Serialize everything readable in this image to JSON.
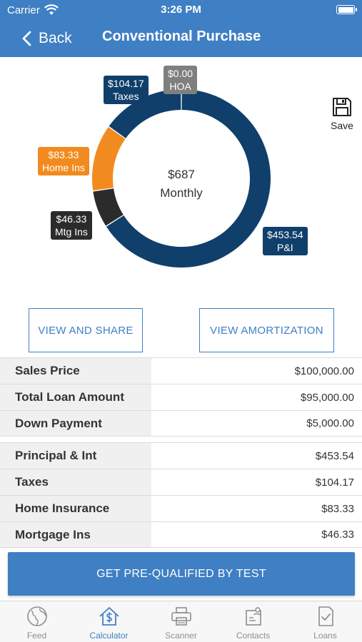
{
  "status": {
    "carrier": "Carrier",
    "time": "3:26 PM"
  },
  "nav": {
    "back_label": "Back",
    "title": "Conventional Purchase"
  },
  "chart_data": {
    "type": "pie",
    "style": "donut",
    "center_amount": "$687",
    "center_label": "Monthly",
    "slices": [
      {
        "name": "P&I",
        "value": 453.54,
        "label": "$453.54",
        "color": "#103f6b"
      },
      {
        "name": "Mtg Ins",
        "value": 46.33,
        "label": "$46.33",
        "color": "#2b2b2b"
      },
      {
        "name": "Home Ins",
        "value": 83.33,
        "label": "$83.33",
        "color": "#f28b1f"
      },
      {
        "name": "Taxes",
        "value": 104.17,
        "label": "$104.17",
        "color": "#103f6b"
      },
      {
        "name": "HOA",
        "value": 0.0,
        "label": "$0.00",
        "color": "#7f7f7f"
      }
    ]
  },
  "save_label": "Save",
  "buttons": {
    "view_share": "VIEW AND SHARE",
    "view_amortization": "VIEW AMORTIZATION"
  },
  "summary_loan": [
    {
      "label": "Sales Price",
      "value": "$100,000.00"
    },
    {
      "label": "Total Loan Amount",
      "value": "$95,000.00"
    },
    {
      "label": "Down Payment",
      "value": "$5,000.00"
    }
  ],
  "summary_payment": [
    {
      "label": "Principal & Int",
      "value": "$453.54"
    },
    {
      "label": "Taxes",
      "value": "$104.17"
    },
    {
      "label": "Home Insurance",
      "value": "$83.33"
    },
    {
      "label": "Mortgage Ins",
      "value": "$46.33"
    }
  ],
  "cta_label": "GET PRE-QUALIFIED BY TEST",
  "tabs": [
    {
      "label": "Feed",
      "icon": "globe-icon",
      "active": false
    },
    {
      "label": "Calculator",
      "icon": "house-dollar-icon",
      "active": true
    },
    {
      "label": "Scanner",
      "icon": "printer-icon",
      "active": false
    },
    {
      "label": "Contacts",
      "icon": "contacts-icon",
      "active": false
    },
    {
      "label": "Loans",
      "icon": "document-check-icon",
      "active": false
    }
  ]
}
